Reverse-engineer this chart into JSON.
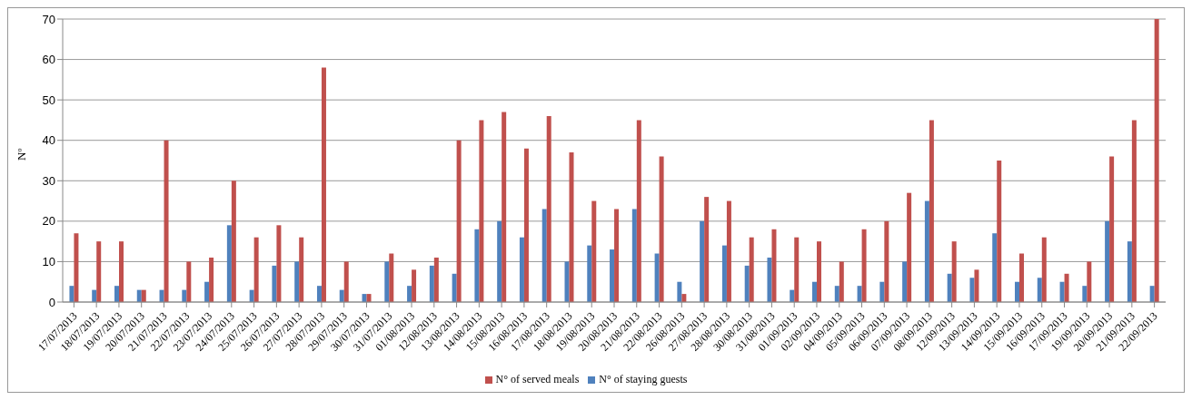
{
  "chart_data": {
    "type": "bar",
    "ylabel": "Nº",
    "categories": [
      "17/07/2013",
      "18/07/2013",
      "19/07/2013",
      "20/07/2013",
      "21/07/2013",
      "22/07/2013",
      "23/07/2013",
      "24/07/2013",
      "25/07/2013",
      "26/07/2013",
      "27/07/2013",
      "28/07/2013",
      "29/07/2013",
      "30/07/2013",
      "31/07/2013",
      "01/08/2013",
      "12/08/2013",
      "13/08/2013",
      "14/08/2013",
      "15/08/2013",
      "16/08/2013",
      "17/08/2013",
      "18/08/2013",
      "19/08/2013",
      "20/08/2013",
      "21/08/2013",
      "22/08/2013",
      "26/08/2013",
      "27/08/2013",
      "28/08/2013",
      "30/08/2013",
      "31/08/2013",
      "01/09/2013",
      "02/09/2013",
      "04/09/2013",
      "05/09/2013",
      "06/09/2013",
      "07/09/2013",
      "08/09/2013",
      "12/09/2013",
      "13/09/2013",
      "14/09/2013",
      "15/09/2013",
      "16/09/2013",
      "17/09/2013",
      "19/09/2013",
      "20/09/2013",
      "21/09/2013",
      "22/09/2013"
    ],
    "series": [
      {
        "name": "N° of staying guests",
        "color": "#4f81bd",
        "values": [
          4,
          3,
          4,
          3,
          3,
          3,
          5,
          19,
          3,
          9,
          10,
          4,
          3,
          2,
          10,
          4,
          9,
          7,
          18,
          20,
          16,
          23,
          10,
          14,
          13,
          23,
          12,
          5,
          20,
          14,
          9,
          11,
          3,
          5,
          4,
          4,
          5,
          10,
          25,
          7,
          6,
          17,
          5,
          6,
          5,
          4,
          20,
          15,
          4
        ]
      },
      {
        "name": "N° of served meals",
        "color": "#c0504d",
        "values": [
          17,
          15,
          15,
          3,
          40,
          10,
          11,
          30,
          16,
          19,
          16,
          58,
          10,
          2,
          12,
          8,
          11,
          40,
          45,
          47,
          38,
          46,
          37,
          25,
          23,
          45,
          36,
          2,
          26,
          25,
          16,
          18,
          16,
          15,
          10,
          18,
          20,
          27,
          45,
          15,
          8,
          35,
          12,
          16,
          7,
          10,
          36,
          45,
          70
        ]
      }
    ],
    "ylim": [
      0,
      70
    ],
    "yticks": [
      0,
      10,
      20,
      30,
      40,
      50,
      60,
      70
    ],
    "grid": "y",
    "legend": "bottom"
  }
}
